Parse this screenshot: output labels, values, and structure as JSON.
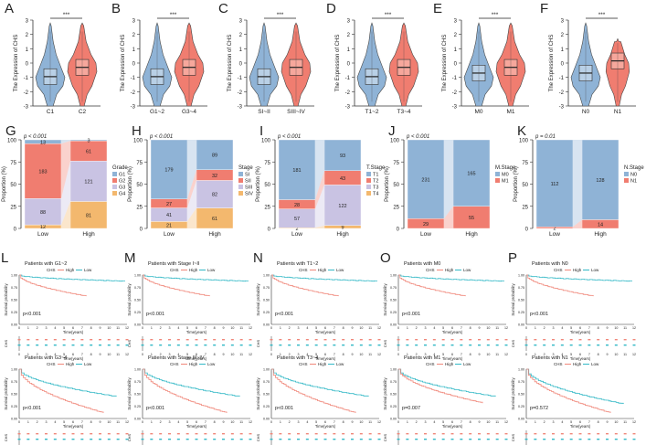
{
  "figure": {
    "colors": {
      "blue": "#8fb3d6",
      "red": "#f07d70",
      "grey": "#d9d9d9",
      "lav": "#c9c3e3",
      "orange": "#f3b86e",
      "teal": "#32b8c6",
      "kmred": "#f0877a"
    },
    "violins": [
      {
        "letter": "A",
        "sig": "***",
        "ylabel": "The Expression of CHS",
        "groups": [
          "C1",
          "C2"
        ]
      },
      {
        "letter": "B",
        "sig": "***",
        "ylabel": "The Expression of CHS",
        "groups": [
          "G1~2",
          "G3~4"
        ]
      },
      {
        "letter": "C",
        "sig": "***",
        "ylabel": "The Expression of CHS",
        "groups": [
          "SI~II",
          "SIII~IV"
        ]
      },
      {
        "letter": "D",
        "sig": "***",
        "ylabel": "The Expression of CHS",
        "groups": [
          "T1~2",
          "T3~4"
        ]
      },
      {
        "letter": "E",
        "sig": "***",
        "ylabel": "The Expression of CHS",
        "groups": [
          "M0",
          "M1"
        ]
      },
      {
        "letter": "F",
        "sig": "***",
        "ylabel": "The Expression of CHS",
        "groups": [
          "N0",
          "N1"
        ]
      }
    ],
    "violin_yticks": [
      "3",
      "2",
      "1",
      "0",
      "-1",
      "-2",
      "-3"
    ],
    "stacks": [
      {
        "letter": "G",
        "p": "p < 0.001",
        "legend_title": "Grade",
        "legend": [
          "G1",
          "G2",
          "G3",
          "G4"
        ],
        "low": [
          "13",
          "183",
          "88",
          "12"
        ],
        "high": [
          "3",
          "61",
          "121",
          "81"
        ]
      },
      {
        "letter": "H",
        "p": "p < 0.001",
        "legend_title": "Stage",
        "legend": [
          "SI",
          "SII",
          "SIII",
          "SIV"
        ],
        "low": [
          "179",
          "27",
          "41",
          "21"
        ],
        "high": [
          "89",
          "32",
          "82",
          "61"
        ]
      },
      {
        "letter": "I",
        "p": "p < 0.001",
        "legend_title": "T.Stage",
        "legend": [
          "T1",
          "T2",
          "T3",
          "T4"
        ],
        "low": [
          "181",
          "28",
          "57",
          "2"
        ],
        "high": [
          "93",
          "43",
          "122",
          "9"
        ]
      },
      {
        "letter": "J",
        "p": "p < 0.001",
        "legend_title": "M.Stage",
        "legend": [
          "M0",
          "M1"
        ],
        "low": [
          "231",
          "29"
        ],
        "high": [
          "165",
          "55"
        ]
      },
      {
        "letter": "K",
        "p": "p = 0.01",
        "legend_title": "N.Stage",
        "legend": [
          "N0",
          "N1"
        ],
        "low": [
          "112",
          "2"
        ],
        "high": [
          "128",
          "14"
        ]
      }
    ],
    "stack_ylabel": "Proportion (%)",
    "stack_yticks": [
      "100",
      "75",
      "50",
      "25",
      "0"
    ],
    "stack_xlabels": [
      "Low",
      "High"
    ],
    "km_top": [
      {
        "letter": "L",
        "title": "Patients with G1~2",
        "p": "p<0.001"
      },
      {
        "letter": "M",
        "title": "Patients with Stage I~II",
        "p": "p<0.001"
      },
      {
        "letter": "N",
        "title": "Patients with T1~2",
        "p": "p<0.001"
      },
      {
        "letter": "O",
        "title": "Patients with M0",
        "p": "p<0.001"
      },
      {
        "letter": "P",
        "title": "Patients with N0",
        "p": "p<0.001"
      }
    ],
    "km_bottom": [
      {
        "title": "Patients with G3~4",
        "p": "p<0.001"
      },
      {
        "title": "Patients with Stage III~IV",
        "p": "p<0.001"
      },
      {
        "title": "Patients with T3~4",
        "p": "p<0.001"
      },
      {
        "title": "Patients with M1",
        "p": "p=0.007"
      },
      {
        "title": "Patients with N1",
        "p": "p=0.572"
      }
    ],
    "km_legend": [
      "CHS",
      "High",
      "Low"
    ],
    "km_ylabel": "Survival probability",
    "km_xlabel": "Time(years)",
    "km_risk_label": "CHS",
    "km_yticks": [
      "1.00",
      "0.75",
      "0.50",
      "0.25",
      "0.00"
    ]
  }
}
